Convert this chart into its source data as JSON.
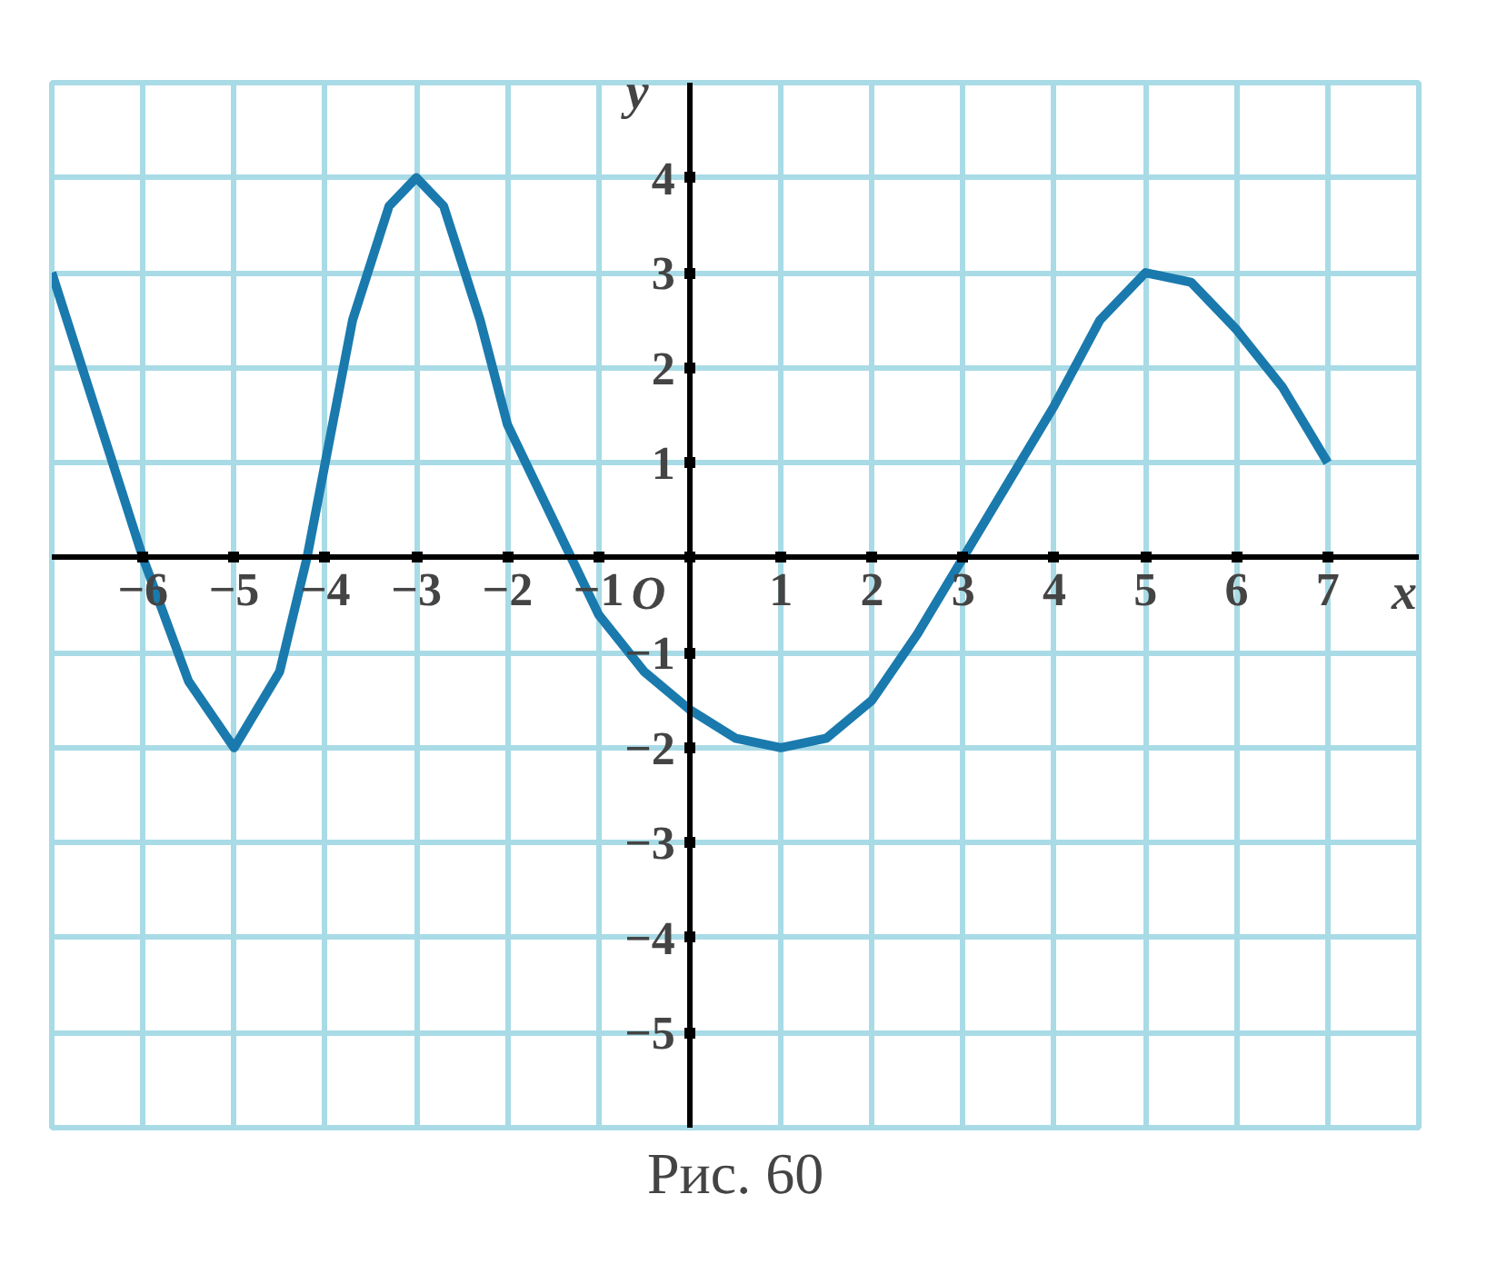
{
  "chart_data": {
    "type": "line",
    "xlabel": "x",
    "ylabel": "y",
    "x": [
      -7,
      -6.5,
      -6,
      -5.5,
      -5,
      -4.5,
      -4.2,
      -3.7,
      -3.3,
      -3,
      -2.7,
      -2.3,
      -2,
      -1.3,
      -1,
      -0.5,
      0,
      0.5,
      1,
      1.5,
      2,
      2.5,
      3,
      3.5,
      4,
      4.5,
      5,
      5.5,
      6,
      6.5,
      7
    ],
    "series": [
      {
        "color": "#1a7aad",
        "values": [
          3,
          1.5,
          0,
          -1.3,
          -2,
          -1.2,
          0,
          2.5,
          3.7,
          4,
          3.7,
          2.5,
          1.4,
          0,
          -0.6,
          -1.2,
          -1.6,
          -1.9,
          -2,
          -1.9,
          -1.5,
          -0.8,
          0,
          0.8,
          1.6,
          2.5,
          3,
          2.9,
          2.4,
          1.8,
          1
        ]
      }
    ],
    "xlim": [
      -7,
      8
    ],
    "ylim": [
      -6,
      5
    ],
    "xticks": [
      -6,
      -5,
      -4,
      -3,
      -2,
      -1,
      {
        "value": 0,
        "label": null
      },
      1,
      2,
      3,
      4,
      5,
      6,
      7
    ],
    "yticks": [
      -5,
      -4,
      -3,
      -2,
      -1,
      {
        "value": 0,
        "label": null
      },
      1,
      2,
      3,
      4
    ],
    "grid": true,
    "marker": "none",
    "line_style": "solid",
    "annotations": [
      "O",
      "Рис. 60"
    ]
  }
}
